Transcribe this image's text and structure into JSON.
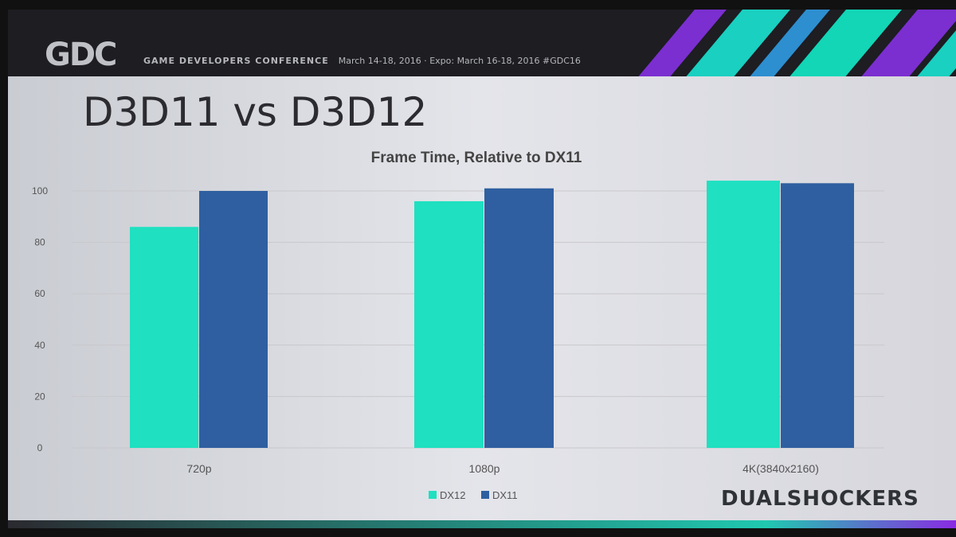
{
  "header": {
    "logo": "GDC",
    "conference": "GAME DEVELOPERS CONFERENCE",
    "dates": "March 14-18, 2016 · Expo: March 16-18, 2016 #GDC16"
  },
  "slide_title": "D3D11 vs D3D12",
  "watermark": "DUALSHOCKERS",
  "chart_data": {
    "type": "bar",
    "title": "Frame Time, Relative to DX11",
    "categories": [
      "720p",
      "1080p",
      "4K(3840x2160)"
    ],
    "series": [
      {
        "name": "DX12",
        "color": "#1fe0c0",
        "values": [
          86,
          96,
          104
        ]
      },
      {
        "name": "DX11",
        "color": "#2f5fa0",
        "values": [
          100,
          101,
          103
        ]
      }
    ],
    "yticks": [
      0,
      20,
      40,
      60,
      80,
      100
    ],
    "ylim": [
      0,
      100
    ],
    "grid": true,
    "legend": "bottom"
  }
}
